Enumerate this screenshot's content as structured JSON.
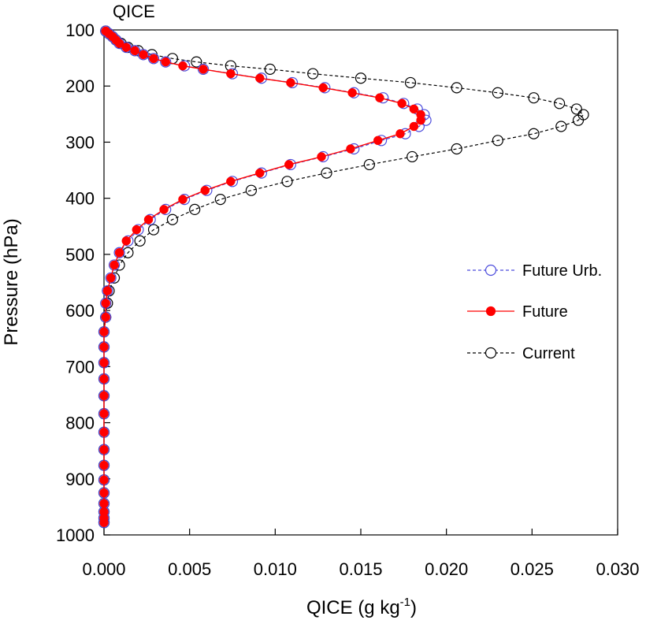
{
  "chart_data": {
    "type": "line",
    "title": "QICE",
    "xlabel": "QICE (g kg",
    "xlabel_sup": "-1",
    "xlabel_close": ")",
    "ylabel": "Pressure (hPa)",
    "xlim": [
      0.0,
      0.03
    ],
    "ylim": [
      100,
      1000
    ],
    "y_reversed": true,
    "grid": false,
    "legend_position": "right",
    "x_ticks": [
      "0.000",
      "0.005",
      "0.010",
      "0.015",
      "0.020",
      "0.025",
      "0.030"
    ],
    "y_ticks": [
      "100",
      "200",
      "300",
      "400",
      "500",
      "600",
      "700",
      "800",
      "900",
      "1000"
    ],
    "series": [
      {
        "name": "Future Urb.",
        "color": "#4b4bdc",
        "line_style": "dashed",
        "marker": "open-circle",
        "points": [
          [
            0.0001,
            102
          ],
          [
            0.0003,
            107
          ],
          [
            0.0005,
            112
          ],
          [
            0.0007,
            118
          ],
          [
            0.0009,
            124
          ],
          [
            0.0013,
            131
          ],
          [
            0.0018,
            137
          ],
          [
            0.0023,
            144
          ],
          [
            0.0029,
            151
          ],
          [
            0.0036,
            157
          ],
          [
            0.0047,
            164
          ],
          [
            0.0058,
            170
          ],
          [
            0.0075,
            178
          ],
          [
            0.0092,
            186
          ],
          [
            0.011,
            194
          ],
          [
            0.0129,
            203
          ],
          [
            0.0146,
            212
          ],
          [
            0.0163,
            221
          ],
          [
            0.0175,
            231
          ],
          [
            0.0183,
            241
          ],
          [
            0.0187,
            251
          ],
          [
            0.0188,
            261
          ],
          [
            0.0184,
            272
          ],
          [
            0.0176,
            285
          ],
          [
            0.0162,
            297
          ],
          [
            0.0146,
            312
          ],
          [
            0.0128,
            326
          ],
          [
            0.0109,
            340
          ],
          [
            0.0092,
            355
          ],
          [
            0.0075,
            370
          ],
          [
            0.006,
            386
          ],
          [
            0.0047,
            402
          ],
          [
            0.0036,
            420
          ],
          [
            0.0027,
            438
          ],
          [
            0.002,
            456
          ],
          [
            0.0014,
            476
          ],
          [
            0.0009,
            497
          ],
          [
            0.0006,
            519
          ],
          [
            0.0004,
            542
          ],
          [
            0.0002,
            565
          ],
          [
            0.0001,
            587
          ],
          [
            0.0001,
            612
          ],
          [
            0.0,
            638
          ],
          [
            0.0,
            665
          ],
          [
            0.0,
            693
          ],
          [
            0.0,
            722
          ],
          [
            0.0,
            752
          ],
          [
            0.0,
            784
          ],
          [
            0.0,
            817
          ],
          [
            0.0,
            848
          ],
          [
            0.0,
            876
          ],
          [
            0.0,
            902
          ],
          [
            0.0,
            925
          ],
          [
            0.0,
            944
          ],
          [
            0.0,
            959
          ],
          [
            0.0,
            970
          ],
          [
            0.0,
            978
          ]
        ]
      },
      {
        "name": "Future",
        "color": "#ff0000",
        "line_style": "solid",
        "marker": "filled-circle",
        "points": [
          [
            0.0001,
            102
          ],
          [
            0.0003,
            107
          ],
          [
            0.0005,
            112
          ],
          [
            0.0007,
            118
          ],
          [
            0.0009,
            124
          ],
          [
            0.0013,
            131
          ],
          [
            0.0018,
            137
          ],
          [
            0.0023,
            144
          ],
          [
            0.0029,
            151
          ],
          [
            0.0036,
            157
          ],
          [
            0.0046,
            164
          ],
          [
            0.0058,
            170
          ],
          [
            0.0074,
            178
          ],
          [
            0.0091,
            186
          ],
          [
            0.0109,
            194
          ],
          [
            0.0128,
            203
          ],
          [
            0.0145,
            212
          ],
          [
            0.0161,
            221
          ],
          [
            0.0174,
            231
          ],
          [
            0.0181,
            241
          ],
          [
            0.0185,
            251
          ],
          [
            0.0185,
            261
          ],
          [
            0.0181,
            272
          ],
          [
            0.0173,
            285
          ],
          [
            0.016,
            297
          ],
          [
            0.0144,
            312
          ],
          [
            0.0127,
            326
          ],
          [
            0.0108,
            340
          ],
          [
            0.0091,
            355
          ],
          [
            0.0074,
            370
          ],
          [
            0.0059,
            386
          ],
          [
            0.0046,
            402
          ],
          [
            0.0035,
            420
          ],
          [
            0.0026,
            438
          ],
          [
            0.0019,
            456
          ],
          [
            0.0013,
            476
          ],
          [
            0.0009,
            497
          ],
          [
            0.0006,
            519
          ],
          [
            0.0004,
            542
          ],
          [
            0.0002,
            565
          ],
          [
            0.0001,
            587
          ],
          [
            0.0001,
            612
          ],
          [
            0.0,
            638
          ],
          [
            0.0,
            665
          ],
          [
            0.0,
            693
          ],
          [
            0.0,
            722
          ],
          [
            0.0,
            752
          ],
          [
            0.0,
            784
          ],
          [
            0.0,
            817
          ],
          [
            0.0,
            848
          ],
          [
            0.0,
            876
          ],
          [
            0.0,
            902
          ],
          [
            0.0,
            925
          ],
          [
            0.0,
            944
          ],
          [
            0.0,
            959
          ],
          [
            0.0,
            970
          ],
          [
            0.0,
            978
          ]
        ]
      },
      {
        "name": "Current",
        "color": "#000000",
        "line_style": "dashed",
        "marker": "open-circle",
        "points": [
          [
            0.0001,
            102
          ],
          [
            0.0003,
            107
          ],
          [
            0.0005,
            112
          ],
          [
            0.0007,
            118
          ],
          [
            0.001,
            124
          ],
          [
            0.0014,
            131
          ],
          [
            0.002,
            137
          ],
          [
            0.0028,
            144
          ],
          [
            0.004,
            151
          ],
          [
            0.0054,
            157
          ],
          [
            0.0074,
            164
          ],
          [
            0.0097,
            170
          ],
          [
            0.0122,
            178
          ],
          [
            0.015,
            186
          ],
          [
            0.0179,
            194
          ],
          [
            0.0206,
            203
          ],
          [
            0.023,
            212
          ],
          [
            0.0251,
            221
          ],
          [
            0.0266,
            231
          ],
          [
            0.0276,
            241
          ],
          [
            0.028,
            251
          ],
          [
            0.0277,
            261
          ],
          [
            0.0267,
            272
          ],
          [
            0.0251,
            285
          ],
          [
            0.023,
            297
          ],
          [
            0.0206,
            312
          ],
          [
            0.018,
            326
          ],
          [
            0.0155,
            340
          ],
          [
            0.013,
            355
          ],
          [
            0.0107,
            370
          ],
          [
            0.0086,
            386
          ],
          [
            0.0068,
            402
          ],
          [
            0.0053,
            420
          ],
          [
            0.004,
            438
          ],
          [
            0.0029,
            456
          ],
          [
            0.0021,
            476
          ],
          [
            0.0014,
            497
          ],
          [
            0.0009,
            519
          ],
          [
            0.0006,
            542
          ],
          [
            0.0003,
            565
          ],
          [
            0.0002,
            587
          ],
          [
            0.0001,
            612
          ],
          [
            0.0,
            638
          ],
          [
            0.0,
            665
          ],
          [
            0.0,
            693
          ],
          [
            0.0,
            722
          ],
          [
            0.0,
            752
          ],
          [
            0.0,
            784
          ],
          [
            0.0,
            817
          ],
          [
            0.0,
            848
          ],
          [
            0.0,
            876
          ],
          [
            0.0,
            902
          ],
          [
            0.0,
            925
          ],
          [
            0.0,
            944
          ],
          [
            0.0,
            959
          ],
          [
            0.0,
            970
          ],
          [
            0.0,
            978
          ]
        ]
      }
    ]
  }
}
